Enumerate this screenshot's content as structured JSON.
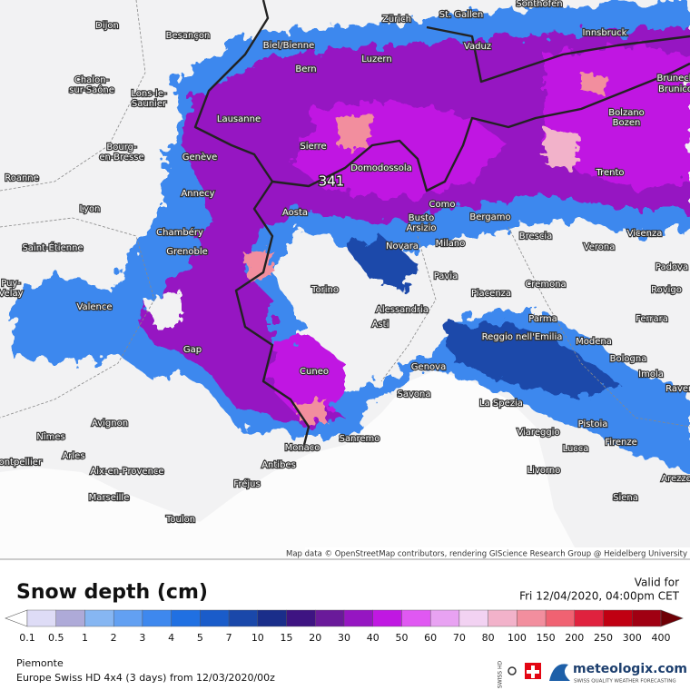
{
  "map": {
    "max_label": "341",
    "attribution": "Map data © OpenStreetMap contributors, rendering GIScience Research Group @ Heidelberg University",
    "cities": [
      "Dijon",
      "Besançon",
      "Zürich",
      "St. Gallen",
      "Sonthofen",
      "Innsbruck",
      "Vaduz",
      "Biel/Bienne",
      "Luzern",
      "Bern",
      "Chalon-",
      "sur-Saône",
      "Lons-le-",
      "Saunier",
      "Bruneck",
      "Brunico",
      "Lausanne",
      "Sierre",
      "Domodossola",
      "Bourg-",
      "en-Bresse",
      "Genève",
      "Bolzano",
      "Bozen",
      "Roanne",
      "Annecy",
      "Trento",
      "Lyon",
      "Aosta",
      "Como",
      "Bergamo",
      "Busto",
      "Arsizio",
      "Chambéry",
      "Novara",
      "Milano",
      "Brescia",
      "Verona",
      "Vicenza",
      "Saint-Étienne",
      "Grenoble",
      "Padova",
      "Pavia",
      "Cremona",
      "Torino",
      "Piacenza",
      "Rovigo",
      "Puy-",
      "Velay",
      "Valence",
      "Alessandria",
      "Parma",
      "Ferrara",
      "Asti",
      "Reggio nell'Emilia",
      "Modena",
      "Gap",
      "Bologna",
      "Genova",
      "Cuneo",
      "Imola",
      "Savona",
      "Ravenna",
      "La Spezia",
      "Avignon",
      "Pistoia",
      "Viareggio",
      "Nîmes",
      "Sanremo",
      "Firenze",
      "Monaco",
      "Lucca",
      "Arles",
      "Montpellier",
      "Antibes",
      "Aix-en-Provence",
      "Livorno",
      "Fréjus",
      "Arezzo",
      "Marseille",
      "Siena",
      "Toulon"
    ]
  },
  "legend": {
    "title": "Snow depth (cm)",
    "valid_label": "Valid for",
    "valid_time": "Fri 12/04/2020, 04:00pm CET",
    "labels": [
      0.1,
      0.5,
      1,
      2,
      3,
      4,
      5,
      7,
      10,
      15,
      20,
      30,
      40,
      50,
      60,
      70,
      80,
      100,
      150,
      200,
      250,
      300,
      400
    ],
    "colors": [
      "#dedcf6",
      "#aeaad8",
      "#86b6f2",
      "#62a0f2",
      "#3e88ee",
      "#2070e2",
      "#1a5cca",
      "#1a48aa",
      "#1a2e8a",
      "#3e1482",
      "#6a1a9a",
      "#9616c2",
      "#c018e2",
      "#e058f2",
      "#e8a2f2",
      "#f2d2f2",
      "#f2b2ca",
      "#f28e9e",
      "#f06272",
      "#e0223e",
      "#c00012",
      "#a00012"
    ],
    "under_color": "#ffffff",
    "over_color": "#6e0006"
  },
  "footer": {
    "region": "Piemonte",
    "model": "Europe Swiss HD 4x4 (3 days) from 12/03/2020/00z",
    "brand": "meteologix.com",
    "tagline": "SWISS QUALITY WEATHER FORECASTING",
    "swiss_hd": "SWISS HD"
  }
}
